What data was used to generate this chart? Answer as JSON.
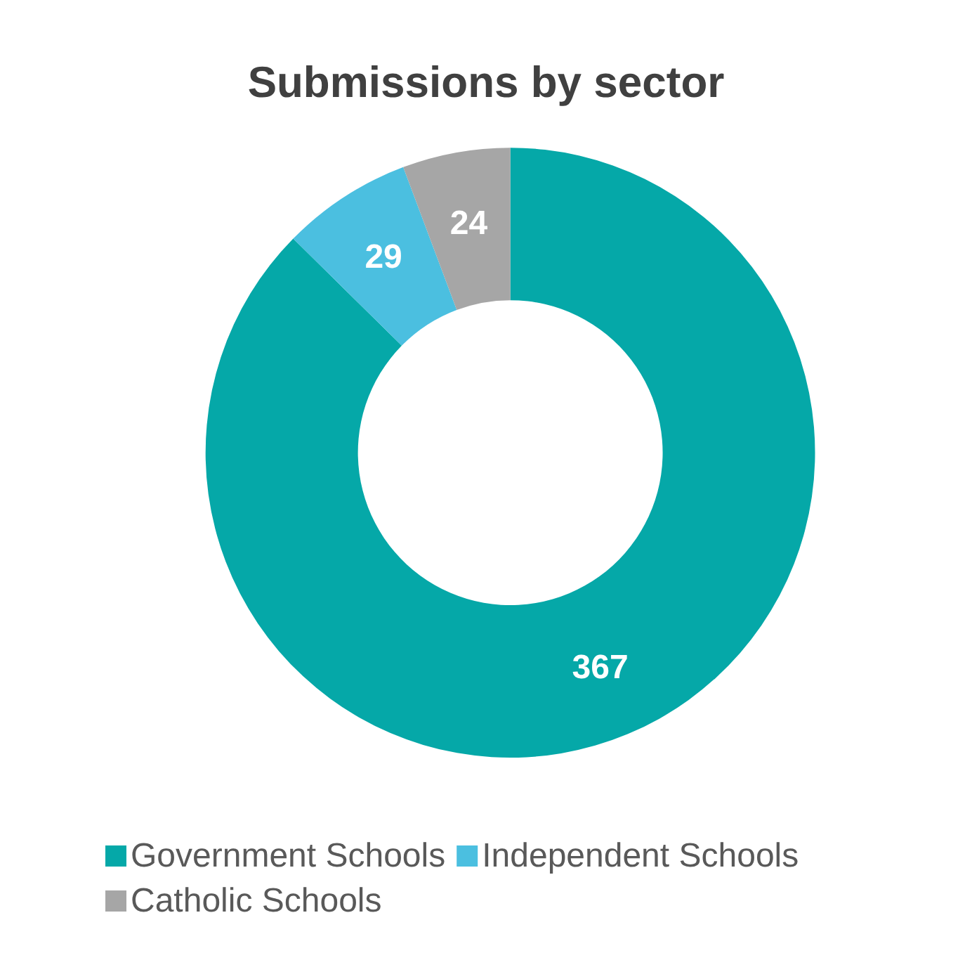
{
  "chart_data": {
    "type": "donut",
    "title": "Submissions by sector",
    "categories": [
      "Government Schools",
      "Independent Schools",
      "Catholic Schools"
    ],
    "values": [
      367,
      29,
      24
    ],
    "colors": [
      "#05a8a8",
      "#4bbfe0",
      "#a6a6a6"
    ],
    "data_labels": true,
    "legend": "bottom"
  }
}
